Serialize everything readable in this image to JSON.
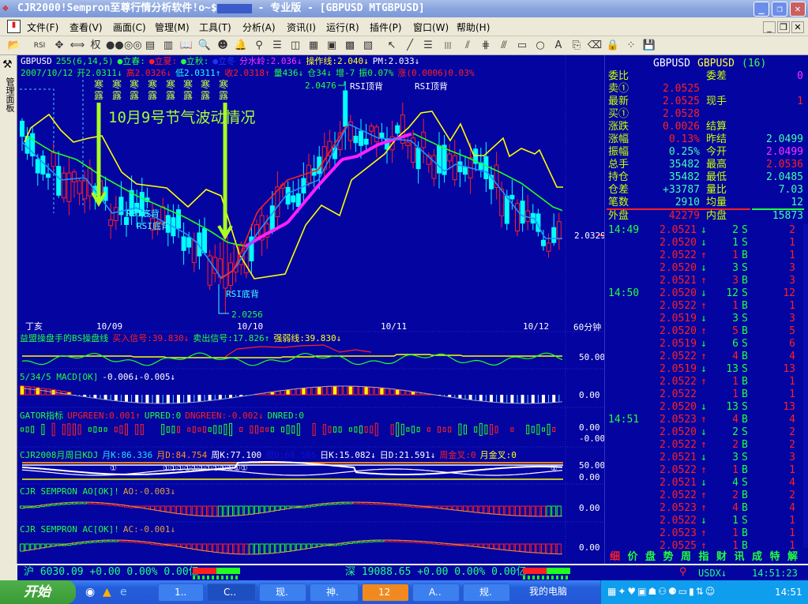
{
  "window": {
    "title_prefix": "CJR2000!Sempron至尊行情分析软件!o~$",
    "title_suffix": " - 专业版 - [GBPUSD MTGBPUSD]",
    "minimize": "_",
    "restore": "❐",
    "close": "✕"
  },
  "menu": [
    "文件(F)",
    "查看(V)",
    "画面(C)",
    "管理(M)",
    "工具(T)",
    "分析(A)",
    "资讯(I)",
    "运行(R)",
    "插件(P)",
    "窗口(W)",
    "帮助(H)"
  ],
  "toolbar": [
    {
      "icon": "open-icon",
      "g": "📂"
    },
    {
      "icon": "rsi-icon",
      "g": "RSI"
    },
    {
      "icon": "move-icon",
      "g": "✥"
    },
    {
      "icon": "resize-icon",
      "g": "⟺"
    },
    {
      "icon": "rights-icon",
      "g": "权"
    },
    {
      "icon": "traffic-icon",
      "g": "●●"
    },
    {
      "icon": "compare-icon",
      "g": "◎◎"
    },
    {
      "icon": "data-icon",
      "g": "▤"
    },
    {
      "icon": "pages-icon",
      "g": "▥"
    },
    {
      "icon": "book-icon",
      "g": "📖"
    },
    {
      "icon": "search-icon",
      "g": "🔍"
    },
    {
      "icon": "person-icon",
      "g": "☻"
    },
    {
      "icon": "alarm-icon",
      "g": "🔔"
    },
    {
      "icon": "plug-icon",
      "g": "⚲"
    },
    {
      "icon": "layout1-icon",
      "g": "☰"
    },
    {
      "icon": "layout2-icon",
      "g": "◫"
    },
    {
      "icon": "chart1-icon",
      "g": "▦"
    },
    {
      "icon": "chart2-icon",
      "g": "▣"
    },
    {
      "icon": "chart3-icon",
      "g": "▩"
    },
    {
      "icon": "chart4-icon",
      "g": "▧"
    },
    {
      "icon": "cursor-icon",
      "g": "↖"
    },
    {
      "icon": "line-icon",
      "g": "╱"
    },
    {
      "icon": "hlines-icon",
      "g": "☰"
    },
    {
      "icon": "vlines-icon",
      "g": "|||"
    },
    {
      "icon": "fan-icon",
      "g": "⫽"
    },
    {
      "icon": "channel-icon",
      "g": "⋕"
    },
    {
      "icon": "parallel-icon",
      "g": "⫻"
    },
    {
      "icon": "rect-icon",
      "g": "▭"
    },
    {
      "icon": "circle-icon",
      "g": "○"
    },
    {
      "icon": "text-icon",
      "g": "A"
    },
    {
      "icon": "copy-icon",
      "g": "⎘"
    },
    {
      "icon": "eraser-icon",
      "g": "⌫"
    },
    {
      "icon": "lock-icon",
      "g": "🔒"
    },
    {
      "icon": "palette-icon",
      "g": "⁘"
    },
    {
      "icon": "save-icon",
      "g": "💾"
    }
  ],
  "left_panel": "管理面板",
  "chart_header": {
    "line1": [
      {
        "t": "GBPUSD",
        "c": "#ffffff"
      },
      {
        "t": "255(6,14,5)",
        "c": "#20ff40"
      },
      {
        "t": "●立春:",
        "c": "#20ff40"
      },
      {
        "t": "●立夏:",
        "c": "#ff2020"
      },
      {
        "t": "●立秋:",
        "c": "#20ff40"
      },
      {
        "t": "●立冬",
        "c": "#2030ff"
      },
      {
        "t": "分水岭:2.036↓",
        "c": "#ff30ff"
      },
      {
        "t": "操作线:2.040↓",
        "c": "#ffff20"
      },
      {
        "t": "PM:2.033↓",
        "c": "#ffffff"
      }
    ],
    "line2": [
      {
        "t": "2007/10/12",
        "c": "#20ff40"
      },
      {
        "t": "开2.0311↓",
        "c": "#20ff40"
      },
      {
        "t": "高2.0326↓",
        "c": "#ff2020"
      },
      {
        "t": "低2.0311↑",
        "c": "#20ffff"
      },
      {
        "t": "收2.0318↑",
        "c": "#ff2020"
      },
      {
        "t": "量436↓",
        "c": "#20ff40"
      },
      {
        "t": "仓34↓",
        "c": "#20ff40"
      },
      {
        "t": "增-7",
        "c": "#20ff40"
      },
      {
        "t": "振0.07%",
        "c": "#20ff40"
      },
      {
        "t": "涨(0.0006)0.03%",
        "c": "#ff2020"
      }
    ]
  },
  "annotations": {
    "solar_term": [
      "寒",
      "露"
    ],
    "headline": "10月9号节气波动情况",
    "high": "2.0476",
    "low": "2.0256",
    "rsi_bottom": "RSI底背",
    "rsi_top": "RSI顶背",
    "last_price": "2.0329"
  },
  "x_axis": {
    "ganzhi": "丁亥",
    "dates": [
      "10/09",
      "10/10",
      "10/11",
      "10/12"
    ],
    "period": "60分钟"
  },
  "indicators": [
    {
      "id": "bs",
      "parts": [
        {
          "t": "益盟操盘手的BS操盘线",
          "c": "#20ff40"
        },
        {
          "t": "买入信号:39.830↓",
          "c": "#ff2020"
        },
        {
          "t": "卖出信号:17.826↑",
          "c": "#20ff40"
        },
        {
          "t": "强弱线:39.830↓",
          "c": "#ffff20"
        }
      ],
      "axis": [
        "50.00"
      ]
    },
    {
      "id": "macd",
      "parts": [
        {
          "t": "5/34/5 MACD[OK]",
          "c": "#20ff40"
        },
        {
          "t": "-0.006↓-0.005↓",
          "c": "#ffffff"
        }
      ],
      "axis": [
        "0.00"
      ]
    },
    {
      "id": "gator",
      "parts": [
        {
          "t": "GATOR指标",
          "c": "#20ff40"
        },
        {
          "t": "UPGREEN:0.001↑",
          "c": "#ff2020"
        },
        {
          "t": "UPRED:0",
          "c": "#20ff40"
        },
        {
          "t": "DNGREEN:-0.002↓",
          "c": "#ff2020"
        },
        {
          "t": "DNRED:0",
          "c": "#20ff40"
        }
      ],
      "axis": [
        "0.00",
        "-0.00"
      ]
    },
    {
      "id": "kdj",
      "parts": [
        {
          "t": "CJR2008月周日KDJ",
          "c": "#20ff40"
        },
        {
          "t": "月K:86.336",
          "c": "#20e0ff"
        },
        {
          "t": "月D:84.754",
          "c": "#ff9020"
        },
        {
          "t": "周K:77.100",
          "c": "#ffffff"
        },
        {
          "t": "周D:68.585",
          "c": "#1010d0"
        },
        {
          "t": "日K:15.082↓",
          "c": "#ffffff"
        },
        {
          "t": "日D:21.591↓",
          "c": "#ffffff"
        },
        {
          "t": "周金叉:0",
          "c": "#ff2020"
        },
        {
          "t": "月金叉:0",
          "c": "#ffff20"
        }
      ],
      "axis": [
        "50.00",
        "0.00"
      ],
      "marks": [
        "①",
        "①①①①①①①①①①①①",
        "①"
      ]
    },
    {
      "id": "ao",
      "parts": [
        {
          "t": "CJR SEMPRON AO[OK]!",
          "c": "#20ff40"
        },
        {
          "t": "AO:-0.003↓",
          "c": "#e0a040"
        }
      ],
      "axis": [
        "0.00"
      ]
    },
    {
      "id": "ac",
      "parts": [
        {
          "t": "CJR SEMPRON  AC[OK]!",
          "c": "#20ff40"
        },
        {
          "t": "AC:-0.001↓",
          "c": "#e0a040"
        }
      ],
      "axis": [
        "0.00"
      ]
    }
  ],
  "quote": {
    "title": [
      "GBPUSD",
      "GBPUSD",
      "(16)"
    ],
    "rows": [
      {
        "l1": "委比",
        "v1": "",
        "c1": "#ff2020",
        "l2": "委差",
        "v2": "0",
        "c2": "#ff30ff"
      },
      {
        "l1": "卖①",
        "v1": "2.0525",
        "c1": "#ff2020",
        "l2": "",
        "v2": "",
        "c2": "#ff2020"
      },
      {
        "l1": "最新",
        "v1": "2.0525",
        "c1": "#ff2020",
        "l2": "现手",
        "v2": "1",
        "c2": "#ff2020"
      },
      {
        "l1": "买①",
        "v1": "2.0528",
        "c1": "#ff2020",
        "l2": "",
        "v2": "",
        "c2": "#ff2020"
      },
      {
        "l1": "涨跌",
        "v1": "0.0026",
        "c1": "#ff2020",
        "l2": "结算",
        "v2": "",
        "c2": "#ff2020"
      },
      {
        "l1": "涨幅",
        "v1": "0.13%",
        "c1": "#ff2020",
        "l2": "昨结",
        "v2": "2.0499",
        "c2": "#40ffb0"
      },
      {
        "l1": "振幅",
        "v1": "0.25%",
        "c1": "#40ffb0",
        "l2": "今开",
        "v2": "2.0499",
        "c2": "#ff30ff"
      },
      {
        "l1": "总手",
        "v1": "35482",
        "c1": "#40ffb0",
        "l2": "最高",
        "v2": "2.0536",
        "c2": "#ff2020"
      },
      {
        "l1": "持仓",
        "v1": "35482",
        "c1": "#40ffb0",
        "l2": "最低",
        "v2": "2.0485",
        "c2": "#40ffb0"
      },
      {
        "l1": "仓差",
        "v1": "+33787",
        "c1": "#40ffb0",
        "l2": "量比",
        "v2": "7.03",
        "c2": "#40ffb0"
      },
      {
        "l1": "笔数",
        "v1": "2910",
        "c1": "#40ffb0",
        "l2": "均量",
        "v2": "12",
        "c2": "#40ffb0"
      }
    ],
    "outer": {
      "l1": "外盘",
      "v1": "42279",
      "l2": "内盘",
      "v2": "15873"
    }
  },
  "trades": [
    {
      "time": "14:49",
      "price": "2.0521",
      "dir": "↓",
      "qty": "2",
      "side": "S",
      "n": "2"
    },
    {
      "time": "",
      "price": "2.0520",
      "dir": "↓",
      "qty": "1",
      "side": "S",
      "n": "1"
    },
    {
      "time": "",
      "price": "2.0522",
      "dir": "↑",
      "qty": "1",
      "side": "B",
      "n": "1"
    },
    {
      "time": "",
      "price": "2.0520",
      "dir": "↓",
      "qty": "3",
      "side": "S",
      "n": "3"
    },
    {
      "time": "",
      "price": "2.0521",
      "dir": "↑",
      "qty": "3",
      "side": "B",
      "n": "3"
    },
    {
      "time": "14:50",
      "price": "2.0520",
      "dir": "↓",
      "qty": "12",
      "side": "S",
      "n": "12"
    },
    {
      "time": "",
      "price": "2.0522",
      "dir": "↑",
      "qty": "1",
      "side": "B",
      "n": "1"
    },
    {
      "time": "",
      "price": "2.0519",
      "dir": "↓",
      "qty": "3",
      "side": "S",
      "n": "3"
    },
    {
      "time": "",
      "price": "2.0520",
      "dir": "↑",
      "qty": "5",
      "side": "B",
      "n": "5"
    },
    {
      "time": "",
      "price": "2.0519",
      "dir": "↓",
      "qty": "6",
      "side": "S",
      "n": "6"
    },
    {
      "time": "",
      "price": "2.0522",
      "dir": "↑",
      "qty": "4",
      "side": "B",
      "n": "4"
    },
    {
      "time": "",
      "price": "2.0519",
      "dir": "↓",
      "qty": "13",
      "side": "S",
      "n": "13"
    },
    {
      "time": "",
      "price": "2.0522",
      "dir": "↑",
      "qty": "1",
      "side": "B",
      "n": "1"
    },
    {
      "time": "",
      "price": "2.0522",
      "dir": "",
      "qty": "1",
      "side": "B",
      "n": "1"
    },
    {
      "time": "",
      "price": "2.0520",
      "dir": "↓",
      "qty": "13",
      "side": "S",
      "n": "13"
    },
    {
      "time": "14:51",
      "price": "2.0523",
      "dir": "↑",
      "qty": "4",
      "side": "B",
      "n": "4"
    },
    {
      "time": "",
      "price": "2.0520",
      "dir": "↓",
      "qty": "2",
      "side": "S",
      "n": "2"
    },
    {
      "time": "",
      "price": "2.0522",
      "dir": "↑",
      "qty": "2",
      "side": "B",
      "n": "2"
    },
    {
      "time": "",
      "price": "2.0521",
      "dir": "↓",
      "qty": "3",
      "side": "S",
      "n": "3"
    },
    {
      "time": "",
      "price": "2.0522",
      "dir": "↑",
      "qty": "1",
      "side": "B",
      "n": "1"
    },
    {
      "time": "",
      "price": "2.0521",
      "dir": "↓",
      "qty": "4",
      "side": "S",
      "n": "4"
    },
    {
      "time": "",
      "price": "2.0522",
      "dir": "↑",
      "qty": "2",
      "side": "B",
      "n": "2"
    },
    {
      "time": "",
      "price": "2.0523",
      "dir": "↑",
      "qty": "4",
      "side": "B",
      "n": "4"
    },
    {
      "time": "",
      "price": "2.0522",
      "dir": "↓",
      "qty": "1",
      "side": "S",
      "n": "1"
    },
    {
      "time": "",
      "price": "2.0523",
      "dir": "↑",
      "qty": "1",
      "side": "B",
      "n": "1"
    },
    {
      "time": "",
      "price": "2.0525",
      "dir": "↑",
      "qty": "1",
      "side": "B",
      "n": "1"
    }
  ],
  "bottom_tabs": [
    "细",
    "价",
    "盘",
    "势",
    "周",
    "指",
    "财",
    "讯",
    "成",
    "特",
    "解"
  ],
  "status": {
    "sh": "沪 6030.09 +0.00 0.00% 0.00亿",
    "sz": "深 19088.65 +0.00 0.00% 0.00亿",
    "usdx": "USDX↓",
    "time": "14:51:23"
  },
  "taskbar": {
    "start": "开始",
    "items": [
      "1..",
      "C..",
      "现.",
      "神.",
      "12",
      "A..",
      "规.",
      "我的电脑"
    ],
    "clock": "14:51"
  },
  "colors": {
    "chart_bg": "#0404a0",
    "up": "#ff2020",
    "down": "#00ffff",
    "label": "#c8ff00"
  }
}
